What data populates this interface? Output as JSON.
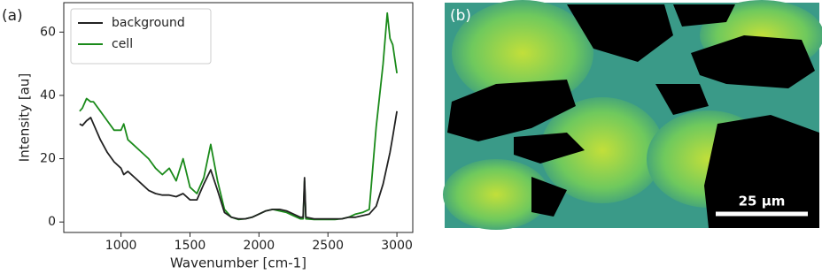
{
  "panel_labels": [
    "(a)",
    "(b)"
  ],
  "image": {
    "scale_bar_label": "25 µm"
  },
  "chart_data": {
    "type": "line",
    "x_label": "Wavenumber [cm-1]",
    "y_label": "Intensity [au]",
    "x": [
      700,
      720,
      750,
      780,
      800,
      850,
      900,
      950,
      1000,
      1020,
      1050,
      1100,
      1150,
      1200,
      1250,
      1300,
      1350,
      1400,
      1450,
      1500,
      1550,
      1600,
      1650,
      1700,
      1750,
      1800,
      1850,
      1900,
      1950,
      2000,
      2050,
      2100,
      2150,
      2200,
      2250,
      2300,
      2320,
      2330,
      2340,
      2400,
      2450,
      2500,
      2550,
      2600,
      2650,
      2700,
      2750,
      2800,
      2850,
      2900,
      2930,
      2950,
      2970,
      3000
    ],
    "series": [
      {
        "name": "background",
        "color": "#222222",
        "values": [
          31,
          30.5,
          32,
          33,
          31,
          26,
          22,
          19,
          17,
          15,
          16,
          14,
          12,
          10,
          9,
          8.5,
          8.5,
          8,
          9,
          7,
          7,
          12,
          16.5,
          10,
          3,
          1.5,
          1,
          1,
          1.5,
          2.5,
          3.5,
          4,
          4,
          3.5,
          2.5,
          1.5,
          1.5,
          14,
          1.5,
          1,
          1,
          1,
          1,
          1,
          1.5,
          1.5,
          2,
          2.5,
          5,
          12,
          18,
          22,
          27,
          35
        ]
      },
      {
        "name": "cell",
        "color": "#1a8a1a",
        "values": [
          35,
          36,
          39,
          38,
          38,
          35,
          32,
          29,
          29,
          31,
          26,
          24,
          22,
          20,
          17,
          15,
          17,
          13,
          20,
          11,
          9,
          14,
          24.5,
          13,
          4,
          1.5,
          0.8,
          1,
          1.5,
          2.5,
          3.5,
          4,
          3.5,
          3,
          2,
          1,
          1,
          13,
          1,
          0.8,
          0.8,
          0.8,
          0.8,
          1,
          1.5,
          2.5,
          3,
          4,
          30,
          50,
          66,
          58,
          56,
          47
        ]
      }
    ],
    "xlim": [
      585,
      3115
    ],
    "xticks": [
      1000,
      1500,
      2000,
      2500,
      3000
    ],
    "ylim": [
      -3.3,
      69.3
    ],
    "yticks": [
      0,
      20,
      40,
      60
    ],
    "legend": "upper left",
    "grid": false
  }
}
